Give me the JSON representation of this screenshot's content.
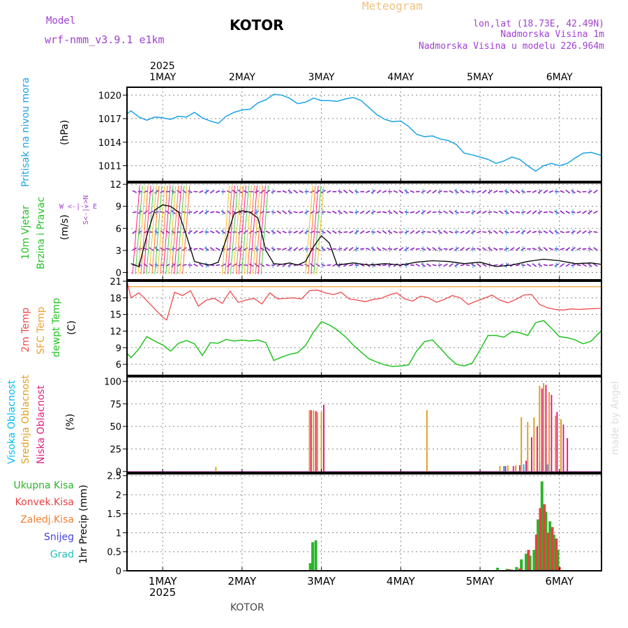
{
  "header": {
    "model_label": "Model",
    "model_name": "wrf-nmm_v3.9.1 e1km",
    "station": "KOTOR",
    "product": "Meteogram",
    "coords": "lon,lat (18.73E, 42.49N)",
    "elevation": "Nadmorska Visina 1m",
    "model_elevation": "Nadmorska Visina u modelu 226.964m",
    "footer_station": "KOTOR",
    "watermark": "made by Angel"
  },
  "time_axis": {
    "year": "2025",
    "day_labels": [
      "1MAY",
      "2MAY",
      "3MAY",
      "4MAY",
      "5MAY",
      "6MAY"
    ],
    "range_days": [
      0.55,
      6.53
    ]
  },
  "colors": {
    "pressure": "#1aa3e8",
    "temp2m": "#ef4b4b",
    "sfc": "#f0a030",
    "dewpt": "#22c322",
    "high_cloud": "#00b8ff",
    "mid_cloud": "#e0a020",
    "low_cloud": "#e0207f",
    "precip_total": "#2ab52a",
    "precip_conv": "#e84040",
    "precip_strat": "#f08030",
    "snow": "#4444e0",
    "hail": "#22c0c0",
    "purple_text": "#a040d0",
    "wind_dir": "#9020c0"
  },
  "chart_data": [
    {
      "id": "pressure",
      "type": "line",
      "ylabel_1": "Pritisak na nivou mora",
      "ylabel_2": "(hPa)",
      "yticks": [
        "1020",
        "1017",
        "1014",
        "1011"
      ],
      "ytick_values": [
        1020,
        1017,
        1014,
        1011
      ],
      "ylim": [
        1009,
        1021
      ],
      "series": [
        {
          "x": [
            0.55,
            0.6,
            0.7,
            0.8,
            0.9,
            1.0,
            1.1,
            1.2,
            1.3,
            1.4,
            1.5,
            1.6,
            1.7,
            1.8,
            1.9,
            2.0,
            2.1,
            2.2,
            2.3,
            2.4,
            2.5,
            2.6,
            2.7,
            2.8,
            2.9,
            3.0,
            3.1,
            3.2,
            3.3,
            3.4,
            3.5,
            3.6,
            3.7,
            3.8,
            3.9,
            4.0,
            4.1,
            4.2,
            4.3,
            4.4,
            4.5,
            4.6,
            4.7,
            4.8,
            4.9,
            5.0,
            5.1,
            5.2,
            5.3,
            5.4,
            5.5,
            5.6,
            5.7,
            5.8,
            5.9,
            6.0,
            6.1,
            6.2,
            6.3,
            6.4,
            6.53
          ],
          "values": [
            1017.6,
            1018.0,
            1017.2,
            1016.8,
            1017.2,
            1017.1,
            1016.9,
            1017.3,
            1017.2,
            1017.8,
            1017.1,
            1016.7,
            1016.4,
            1017.3,
            1017.8,
            1018.1,
            1018.2,
            1019.0,
            1019.4,
            1020.1,
            1020.0,
            1019.6,
            1018.9,
            1019.1,
            1019.6,
            1019.3,
            1019.3,
            1019.2,
            1019.5,
            1019.7,
            1019.3,
            1018.4,
            1017.5,
            1016.9,
            1016.6,
            1016.7,
            1016.0,
            1015.0,
            1014.7,
            1014.8,
            1014.4,
            1014.2,
            1013.7,
            1012.6,
            1012.4,
            1012.1,
            1011.8,
            1011.3,
            1011.6,
            1012.1,
            1011.8,
            1011.0,
            1010.3,
            1011.0,
            1011.3,
            1011.0,
            1011.3,
            1012.0,
            1012.6,
            1012.7,
            1012.3
          ]
        }
      ]
    },
    {
      "id": "wind",
      "type": "line",
      "ylabel_1": "10m Vjetar",
      "ylabel_2": "Brzina i Pravac",
      "ylabel_3": "(m/s)",
      "compass": "W <-|-> E",
      "compass_ns": "S<-|->N",
      "yticks": [
        "12",
        "9",
        "6",
        "3",
        "0"
      ],
      "ytick_values": [
        12,
        9,
        6,
        3,
        0
      ],
      "ylim": [
        -1,
        12.2
      ],
      "series": [
        {
          "name": "speed",
          "x": [
            0.6,
            0.7,
            0.8,
            0.9,
            1.0,
            1.1,
            1.2,
            1.3,
            1.4,
            1.5,
            1.6,
            1.7,
            1.8,
            1.9,
            2.0,
            2.1,
            2.2,
            2.3,
            2.4,
            2.5,
            2.6,
            2.7,
            2.8,
            2.9,
            3.0,
            3.1,
            3.2,
            3.4,
            3.6,
            3.8,
            4.0,
            4.2,
            4.4,
            4.6,
            4.8,
            5.0,
            5.2,
            5.4,
            5.6,
            5.8,
            6.0,
            6.2,
            6.4,
            6.53
          ],
          "values": [
            1.2,
            0.8,
            5.0,
            8.5,
            9.2,
            9.0,
            8.2,
            5.0,
            1.5,
            1.2,
            1.0,
            1.4,
            4.5,
            8.0,
            8.4,
            8.2,
            7.4,
            3.0,
            1.2,
            1.1,
            1.3,
            1.0,
            1.5,
            3.5,
            5.0,
            4.0,
            1.0,
            1.3,
            1.0,
            1.2,
            1.0,
            1.4,
            1.6,
            1.5,
            1.2,
            1.4,
            0.8,
            1.0,
            1.5,
            1.8,
            1.6,
            1.2,
            1.3,
            1.1
          ]
        }
      ]
    },
    {
      "id": "temperature",
      "type": "line",
      "ylabel_1": "2m Temp",
      "ylabel_2": "SFC Temp",
      "ylabel_3": "dewpt Temp",
      "ylabel_4": "(C)",
      "yticks": [
        "21",
        "18",
        "15",
        "12",
        "9",
        "6"
      ],
      "ytick_values": [
        21,
        18,
        15,
        12,
        9,
        6
      ],
      "ylim": [
        4,
        21
      ],
      "series": [
        {
          "name": "2m Temp",
          "x": [
            0.55,
            0.6,
            0.7,
            0.8,
            0.9,
            1.0,
            1.05,
            1.15,
            1.25,
            1.35,
            1.45,
            1.55,
            1.65,
            1.75,
            1.85,
            1.95,
            2.05,
            2.15,
            2.25,
            2.35,
            2.45,
            2.55,
            2.65,
            2.75,
            2.85,
            2.95,
            3.05,
            3.15,
            3.25,
            3.35,
            3.45,
            3.55,
            3.65,
            3.75,
            3.85,
            3.95,
            4.05,
            4.15,
            4.25,
            4.35,
            4.45,
            4.55,
            4.65,
            4.75,
            4.85,
            4.95,
            5.05,
            5.15,
            5.25,
            5.35,
            5.45,
            5.55,
            5.65,
            5.75,
            5.85,
            5.95,
            6.05,
            6.15,
            6.25,
            6.35,
            6.53
          ],
          "values": [
            21.0,
            18.0,
            18.9,
            17.5,
            16.0,
            14.5,
            14.0,
            19.0,
            18.4,
            19.3,
            16.5,
            17.6,
            17.9,
            17.0,
            19.2,
            17.2,
            17.6,
            17.9,
            16.9,
            18.9,
            17.8,
            17.9,
            18.0,
            17.8,
            19.3,
            19.4,
            18.9,
            18.6,
            19.0,
            17.8,
            17.6,
            17.3,
            17.7,
            17.9,
            18.5,
            18.9,
            17.8,
            17.4,
            18.3,
            18.0,
            17.2,
            17.7,
            18.4,
            18.0,
            16.8,
            17.4,
            17.9,
            18.5,
            17.6,
            17.1,
            17.7,
            18.5,
            18.6,
            16.8,
            16.2,
            15.9,
            15.8,
            16.0,
            15.9,
            16.0,
            16.1
          ]
        },
        {
          "name": "SFC Temp",
          "x": [
            0.55,
            6.53
          ],
          "values": [
            20.0,
            20.0
          ]
        },
        {
          "name": "dewpt Temp",
          "x": [
            0.55,
            0.6,
            0.7,
            0.8,
            0.9,
            1.0,
            1.1,
            1.2,
            1.3,
            1.4,
            1.5,
            1.6,
            1.7,
            1.8,
            1.9,
            2.0,
            2.1,
            2.2,
            2.3,
            2.4,
            2.5,
            2.6,
            2.7,
            2.8,
            2.9,
            3.0,
            3.1,
            3.2,
            3.3,
            3.4,
            3.5,
            3.6,
            3.7,
            3.8,
            3.9,
            4.0,
            4.1,
            4.2,
            4.3,
            4.4,
            4.5,
            4.6,
            4.7,
            4.8,
            4.9,
            5.0,
            5.1,
            5.2,
            5.3,
            5.4,
            5.5,
            5.6,
            5.7,
            5.8,
            5.9,
            6.0,
            6.1,
            6.2,
            6.3,
            6.4,
            6.53
          ],
          "values": [
            8.0,
            7.2,
            8.8,
            11.0,
            10.2,
            9.5,
            8.4,
            9.8,
            10.3,
            9.7,
            7.6,
            9.9,
            9.8,
            10.5,
            10.2,
            10.4,
            10.2,
            10.4,
            9.9,
            6.7,
            7.3,
            7.8,
            8.1,
            9.4,
            11.8,
            13.7,
            13.1,
            12.2,
            11.0,
            9.5,
            8.2,
            7.0,
            6.4,
            5.9,
            5.6,
            5.7,
            5.9,
            8.4,
            10.1,
            10.4,
            8.9,
            7.3,
            6.0,
            5.7,
            6.2,
            8.6,
            11.2,
            11.2,
            10.9,
            11.9,
            11.7,
            11.2,
            13.5,
            13.9,
            12.5,
            11.0,
            10.8,
            10.4,
            9.7,
            10.2,
            12.1
          ]
        }
      ]
    },
    {
      "id": "cloud",
      "type": "bar",
      "ylabel_1": "Visoka Oblacnost",
      "ylabel_2": "Srednja Oblacnost",
      "ylabel_3": "Niska Oblacnost",
      "ylabel_4": "(%)",
      "yticks": [
        "100",
        "75",
        "50",
        "25",
        "0"
      ],
      "ytick_values": [
        100,
        75,
        50,
        25,
        0
      ],
      "ylim": [
        -1,
        105
      ],
      "series": [
        {
          "name": "Visoka Oblacnost",
          "x": [
            2.85,
            2.95,
            5.3,
            5.45,
            5.55,
            5.65,
            5.75,
            5.85,
            5.95
          ],
          "values": [
            5,
            6,
            6,
            5,
            8,
            14,
            10,
            8,
            6
          ]
        },
        {
          "name": "Srednja Oblacnost",
          "x": [
            1.67,
            2.85,
            2.9,
            2.95,
            3.0,
            4.33,
            5.25,
            5.35,
            5.45,
            5.52,
            5.6,
            5.68,
            5.75,
            5.8,
            5.87,
            5.95,
            6.02
          ],
          "values": [
            5,
            68,
            68,
            66,
            66,
            68,
            6,
            7,
            7,
            60,
            55,
            60,
            95,
            98,
            88,
            62,
            58
          ]
        },
        {
          "name": "Niska Oblacnost",
          "x": [
            2.87,
            2.93,
            3.03,
            5.32,
            5.42,
            5.5,
            5.58,
            5.65,
            5.72,
            5.78,
            5.83,
            5.9,
            5.97,
            6.05,
            6.1
          ],
          "values": [
            68,
            67,
            74,
            6,
            6,
            7,
            12,
            38,
            50,
            92,
            96,
            85,
            66,
            52,
            37
          ]
        }
      ]
    },
    {
      "id": "precip",
      "type": "bar",
      "ylabel_1": "Ukupna Kisa",
      "ylabel_2": "Konvek.Kisa",
      "ylabel_3": "Zaledj.Kisa",
      "ylabel_4": "Snijeg",
      "ylabel_5": "Grad",
      "ylabel_6": "1hr Precip (mm)",
      "yticks": [
        "2.5",
        "2",
        "1.5",
        "1",
        "0.5",
        "0"
      ],
      "ytick_values": [
        2.5,
        2,
        1.5,
        1,
        0.5,
        0
      ],
      "ylim": [
        0,
        2.55
      ],
      "series": [
        {
          "name": "Ukupna Kisa",
          "x": [
            2.86,
            2.89,
            2.93,
            5.22,
            5.34,
            5.4,
            5.46,
            5.52,
            5.58,
            5.63,
            5.68,
            5.73,
            5.78,
            5.83,
            5.88,
            5.93,
            5.98
          ],
          "values": [
            0.2,
            0.75,
            0.8,
            0.08,
            0.05,
            0.03,
            0.1,
            0.3,
            0.45,
            0.4,
            0.55,
            1.35,
            2.35,
            1.55,
            1.3,
            0.95,
            0.55
          ]
        },
        {
          "name": "Konvek.Kisa",
          "x": [
            5.37,
            5.5,
            5.61,
            5.71,
            5.76,
            5.81,
            5.86,
            5.91,
            5.96,
            6.0
          ],
          "values": [
            0.04,
            0.06,
            0.55,
            0.95,
            1.65,
            1.75,
            1.0,
            1.15,
            0.85,
            0.1
          ]
        },
        {
          "name": "Zaledj.Kisa",
          "x": [
            5.55
          ],
          "values": [
            0.02
          ]
        }
      ]
    }
  ]
}
